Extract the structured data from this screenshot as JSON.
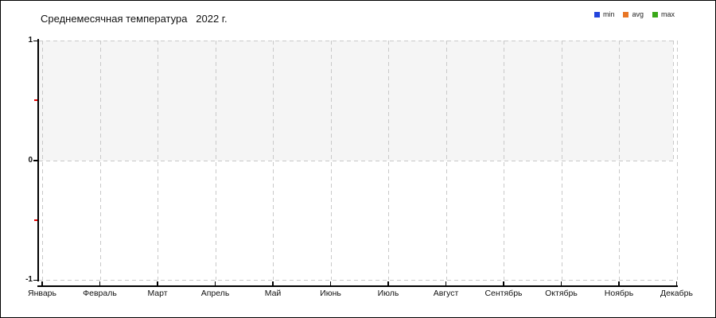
{
  "window": {
    "title": "Среднемесячная температура   2022 г."
  },
  "legend": {
    "items": [
      {
        "label": "min",
        "color": "#2244dd"
      },
      {
        "label": "avg",
        "color": "#e87625"
      },
      {
        "label": "max",
        "color": "#3aa818"
      }
    ]
  },
  "chart_data": {
    "type": "line",
    "title": "Среднемесячная температура   2022 г.",
    "x_categories": [
      "Январь",
      "Февраль",
      "Март",
      "Апрель",
      "Май",
      "Июнь",
      "Июль",
      "Август",
      "Сентябрь",
      "Октябрь",
      "Ноябрь",
      "Декабрь"
    ],
    "series": [
      {
        "name": "min",
        "color": "#2244dd",
        "values": []
      },
      {
        "name": "avg",
        "color": "#e87625",
        "values": []
      },
      {
        "name": "max",
        "color": "#3aa818",
        "values": []
      }
    ],
    "ylim": [
      -1,
      1
    ],
    "y_ticks": [
      {
        "value": 1,
        "label": "1"
      },
      {
        "value": 0,
        "label": "0"
      },
      {
        "value": -1,
        "label": "-1"
      }
    ],
    "y_minor_ticks": [
      0.5,
      -0.5
    ],
    "highlight_band": {
      "from": 0,
      "to": 1,
      "fill": "#f5f5f5"
    },
    "grid": {
      "style": "dashed",
      "color": "#c9c9c9",
      "vertical_per_category": true
    },
    "legend_position": "top-right",
    "minor_tick_color": "#e80000",
    "axis_color": "#000000"
  }
}
